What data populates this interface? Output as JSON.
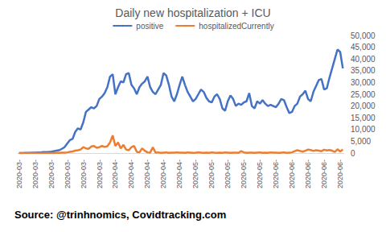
{
  "chart_data": {
    "type": "line",
    "title": "Daily new hospitalization + ICU",
    "annotations": [
      "Source: @trinhnomics, Covidtracking.com"
    ],
    "categories": [
      "2020-03-",
      null,
      null,
      null,
      null,
      null,
      "2020-03-",
      null,
      null,
      null,
      null,
      null,
      "2020-03-",
      null,
      null,
      null,
      null,
      null,
      "2020-03-",
      null,
      null,
      null,
      null,
      null,
      "2020-03-",
      null,
      null,
      null,
      null,
      null,
      "2020-03-",
      null,
      null,
      null,
      null,
      null,
      "2020-04-",
      null,
      null,
      null,
      null,
      null,
      "2020-04-",
      null,
      null,
      null,
      null,
      null,
      "2020-04-",
      null,
      null,
      null,
      null,
      null,
      "2020-04-",
      null,
      null,
      null,
      null,
      null,
      "2020-04-",
      null,
      null,
      null,
      null,
      null,
      "2020-05-",
      null,
      null,
      null,
      null,
      null,
      "2020-05-",
      null,
      null,
      null,
      null,
      null,
      "2020-05-",
      null,
      null,
      null,
      null,
      null,
      "2020-05-",
      null,
      null,
      null,
      null,
      null,
      "2020-05-",
      null,
      null,
      null,
      null,
      null,
      "2020-06-",
      null,
      null,
      null,
      null,
      null,
      "2020-06-",
      null,
      null,
      null,
      null,
      null,
      "2020-06-",
      null,
      null,
      null,
      null,
      null,
      "2020-06-",
      null,
      null,
      null,
      null,
      null,
      "2020-06-",
      null
    ],
    "series": [
      {
        "name": "positive",
        "color": "#4472c4",
        "values": [
          20,
          30,
          50,
          80,
          100,
          150,
          200,
          250,
          300,
          400,
          450,
          500,
          600,
          800,
          1000,
          1200,
          1800,
          2500,
          4000,
          5500,
          6000,
          9000,
          10500,
          10000,
          13000,
          17500,
          18500,
          19500,
          19000,
          20000,
          23000,
          24000,
          25500,
          28000,
          32500,
          33500,
          25000,
          28000,
          30500,
          30000,
          33500,
          34000,
          29000,
          27500,
          25000,
          28000,
          29500,
          30500,
          32500,
          28000,
          26000,
          25000,
          27000,
          29000,
          34000,
          33000,
          29000,
          24000,
          22000,
          25000,
          29000,
          32500,
          29000,
          26000,
          24000,
          22000,
          23000,
          25000,
          27000,
          26000,
          23500,
          22000,
          21500,
          24000,
          25000,
          23000,
          19000,
          18000,
          22000,
          24500,
          23000,
          20000,
          21000,
          20500,
          21500,
          22000,
          25500,
          20000,
          19000,
          22000,
          21000,
          22500,
          21000,
          20000,
          20500,
          20000,
          19500,
          21000,
          23000,
          22500,
          19500,
          17000,
          17500,
          20000,
          21000,
          24000,
          25000,
          26500,
          23000,
          22000,
          26000,
          28500,
          31000,
          31500,
          27000,
          27500,
          32000,
          36000,
          40000,
          44000,
          43000,
          36000
        ]
      },
      {
        "name": "hospitalizedCurrently",
        "color": "#ed7d31",
        "values": [
          0,
          0,
          0,
          0,
          0,
          0,
          0,
          0,
          0,
          0,
          0,
          0,
          0,
          0,
          50,
          100,
          150,
          200,
          300,
          500,
          700,
          1000,
          1200,
          1500,
          2500,
          2000,
          1800,
          2800,
          3000,
          2200,
          2500,
          3000,
          2600,
          2900,
          4500,
          7500,
          3000,
          4500,
          2000,
          3500,
          1500,
          1200,
          2500,
          3000,
          500,
          300,
          2000,
          1000,
          300,
          200,
          2500,
          200,
          300,
          100,
          200,
          300,
          100,
          200,
          150,
          300,
          200,
          200,
          100,
          300,
          200,
          100,
          150,
          300,
          200,
          100,
          200,
          100,
          300,
          150,
          100,
          200,
          100,
          300,
          200,
          100,
          200,
          150,
          100,
          800,
          300,
          100,
          200,
          150,
          100,
          200,
          300,
          100,
          200,
          100,
          300,
          200,
          150,
          100,
          200,
          300,
          100,
          200,
          300,
          800,
          1200,
          900,
          600,
          1000,
          1500,
          1300,
          900,
          1200,
          1000,
          800,
          1400,
          1100,
          1300,
          1000,
          500,
          1600,
          700,
          1500
        ]
      }
    ],
    "ylim": [
      0,
      50000
    ],
    "yticks": [
      0,
      {
        "value": 5000,
        "label": "5,000"
      },
      {
        "value": 10000,
        "label": "10,000"
      },
      {
        "value": 15000,
        "label": "15,000"
      },
      {
        "value": 20000,
        "label": "20,000"
      },
      {
        "value": 25000,
        "label": "25,000"
      },
      {
        "value": 30000,
        "label": "30,000"
      },
      {
        "value": 35000,
        "label": "35,000"
      },
      {
        "value": 40000,
        "label": "40,000"
      },
      {
        "value": 45000,
        "label": "45,000"
      },
      {
        "value": 50000,
        "label": "50,000"
      }
    ],
    "grid": false,
    "legend": "top"
  }
}
